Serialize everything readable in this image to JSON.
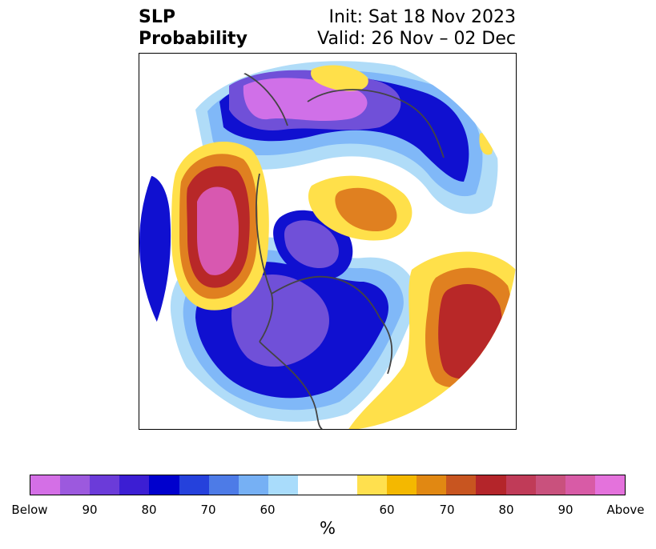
{
  "title": {
    "left_line1": "SLP",
    "left_line2": "Probability",
    "right_line1": "Init: Sat 18 Nov 2023",
    "right_line2": "Valid: 26 Nov – 02 Dec"
  },
  "map": {
    "projection": "north-polar-stereographic",
    "colors": {
      "below_strong": "#d070e8",
      "below_mid": "#7050d8",
      "below_deep": "#1010d0",
      "below_light": "#80b8f8",
      "below_faint": "#b0dcf8",
      "above_faint": "#ffe04a",
      "above_light": "#f0b800",
      "above_mid": "#e08020",
      "above_deep": "#b82828",
      "above_strong": "#d858b0"
    }
  },
  "colorbar": {
    "colors": [
      "#d46fe6",
      "#9c59de",
      "#6b3bd9",
      "#3c1ed3",
      "#0000cd",
      "#2541dc",
      "#4d7be7",
      "#76b0f4",
      "#a9dcfb",
      "#ffffff",
      "#ffe04e",
      "#f4b800",
      "#e18812",
      "#c85520",
      "#b4252a",
      "#c03b58",
      "#c9517d",
      "#d85ba6",
      "#e472dc"
    ],
    "tick_labels": [
      "Below",
      "90",
      "80",
      "70",
      "60",
      "60",
      "70",
      "80",
      "90",
      "Above"
    ],
    "unit": "%"
  }
}
